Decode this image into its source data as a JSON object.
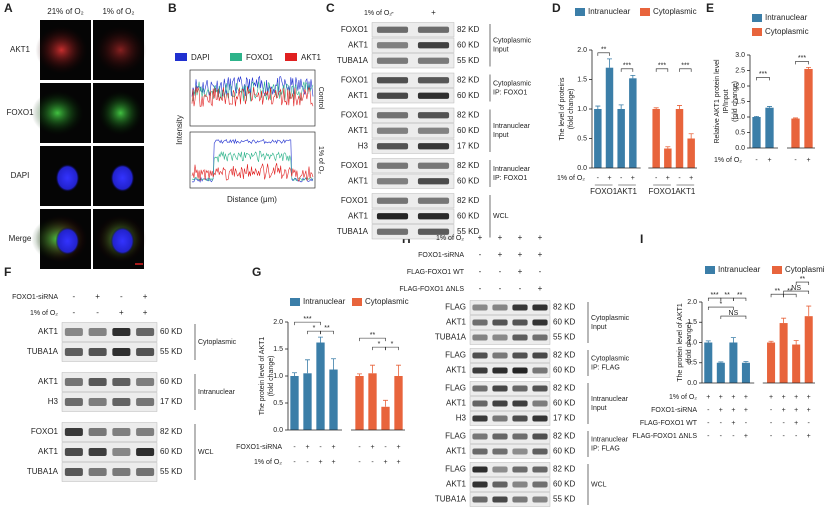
{
  "figure": {
    "A": {
      "letter": "A",
      "columns": [
        "21% of O₂",
        "1% of O₂"
      ],
      "rows": [
        "AKT1",
        "FOXO1",
        "DAPI",
        "Merge"
      ]
    },
    "B": {
      "letter": "B",
      "legend": [
        "DAPI",
        "FOXO1",
        "AKT1"
      ],
      "y_label": "Intensity",
      "x_label": "Distance (μm)",
      "conditions": [
        "Control",
        "1% of O₂"
      ]
    },
    "C": {
      "letter": "C",
      "conditions": [
        {
          "label": "1% of O₂",
          "signs": [
            "-",
            "+"
          ]
        }
      ],
      "sections": [
        {
          "label": [
            "Cytoplasmic",
            "Input"
          ],
          "bands": [
            {
              "protein": "FOXO1",
              "size": "82 KD"
            },
            {
              "protein": "AKT1",
              "size": "60 KD"
            },
            {
              "protein": "TUBA1A",
              "size": "55 KD"
            }
          ]
        },
        {
          "label": [
            "Cytoplasmic",
            "IP: FOXO1"
          ],
          "bands": [
            {
              "protein": "FOXO1",
              "size": "82 KD"
            },
            {
              "protein": "AKT1",
              "size": "60 KD"
            }
          ]
        },
        {
          "label": [
            "Intranuclear",
            "Input"
          ],
          "bands": [
            {
              "protein": "FOXO1",
              "size": "82 KD"
            },
            {
              "protein": "AKT1",
              "size": "60 KD"
            },
            {
              "protein": "H3",
              "size": "17 KD"
            }
          ]
        },
        {
          "label": [
            "Intranuclear",
            "IP: FOXO1"
          ],
          "bands": [
            {
              "protein": "FOXO1",
              "size": "82 KD"
            },
            {
              "protein": "AKT1",
              "size": "60 KD"
            }
          ]
        },
        {
          "label": [
            "WCL"
          ],
          "bands": [
            {
              "protein": "FOXO1",
              "size": "82 KD"
            },
            {
              "protein": "AKT1",
              "size": "60 KD"
            },
            {
              "protein": "TUBA1A",
              "size": "55 KD"
            }
          ]
        }
      ]
    },
    "F": {
      "letter": "F",
      "conditions": [
        {
          "label": "FOXO1-siRNA",
          "signs": [
            "-",
            "+",
            "-",
            "+"
          ]
        },
        {
          "label": "1% of O₂",
          "signs": [
            "-",
            "-",
            "+",
            "+"
          ]
        }
      ],
      "sections": [
        {
          "label": [
            "Cytoplasmic"
          ],
          "bands": [
            {
              "protein": "AKT1",
              "size": "60 KD"
            },
            {
              "protein": "TUBA1A",
              "size": "55 KD"
            }
          ]
        },
        {
          "label": [
            "Intranuclear"
          ],
          "bands": [
            {
              "protein": "AKT1",
              "size": "60 KD"
            },
            {
              "protein": "H3",
              "size": "17 KD"
            }
          ]
        },
        {
          "label": [
            "WCL"
          ],
          "bands": [
            {
              "protein": "FOXO1",
              "size": "82 KD"
            },
            {
              "protein": "AKT1",
              "size": "60 KD"
            },
            {
              "protein": "TUBA1A",
              "size": "55 KD"
            }
          ]
        }
      ]
    },
    "H": {
      "letter": "H",
      "conditions": [
        {
          "label": "1% of O₂",
          "signs": [
            "+",
            "+",
            "+",
            "+"
          ]
        },
        {
          "label": "FOXO1-siRNA",
          "signs": [
            "-",
            "+",
            "+",
            "+"
          ]
        },
        {
          "label": "FLAG-FOXO1 WT",
          "signs": [
            "-",
            "-",
            "+",
            "-"
          ]
        },
        {
          "label": "FLAG-FOXO1 ΔNLS",
          "signs": [
            "-",
            "-",
            "-",
            "+"
          ]
        }
      ],
      "sections": [
        {
          "label": [
            "Cytoplasmic",
            "Input"
          ],
          "bands": [
            {
              "protein": "FLAG",
              "size": "82 KD"
            },
            {
              "protein": "AKT1",
              "size": "60 KD"
            },
            {
              "protein": "TUBA1A",
              "size": "55 KD"
            }
          ]
        },
        {
          "label": [
            "Cytoplasmic",
            "IP: FLAG"
          ],
          "bands": [
            {
              "protein": "FLAG",
              "size": "82 KD"
            },
            {
              "protein": "AKT1",
              "size": "60 KD"
            }
          ]
        },
        {
          "label": [
            "Intranuclear",
            "Input"
          ],
          "bands": [
            {
              "protein": "FLAG",
              "size": "82 KD"
            },
            {
              "protein": "AKT1",
              "size": "60 KD"
            },
            {
              "protein": "H3",
              "size": "17 KD"
            }
          ]
        },
        {
          "label": [
            "Intranuclear",
            "IP: FLAG"
          ],
          "bands": [
            {
              "protein": "FLAG",
              "size": "82 KD"
            },
            {
              "protein": "AKT1",
              "size": "60 KD"
            }
          ]
        },
        {
          "label": [
            "WCL"
          ],
          "bands": [
            {
              "protein": "FLAG",
              "size": "82 KD"
            },
            {
              "protein": "AKT1",
              "size": "60 KD"
            },
            {
              "protein": "TUBA1A",
              "size": "55 KD"
            }
          ]
        }
      ]
    }
  },
  "chart_data": [
    {
      "type": "bar",
      "letter": "D",
      "y_label": [
        "The level of proteins",
        "(fold change)"
      ],
      "ylim": [
        0,
        2
      ],
      "yticks": [
        {
          "value": 0,
          "label": "0.0"
        },
        {
          "value": 0.5,
          "label": "0.5"
        },
        {
          "value": 1,
          "label": "1.0"
        },
        {
          "value": 1.5,
          "label": "1.5"
        },
        {
          "value": 2,
          "label": "2.0"
        }
      ],
      "series": [
        {
          "name": "Intranuclear",
          "color": "#3b7ea8",
          "values": [
            1.0,
            1.7,
            1.0,
            1.52
          ],
          "errors": [
            0.05,
            0.15,
            0.07,
            0.05
          ]
        },
        {
          "name": "Cytoplasmic",
          "color": "#e8643c",
          "values": [
            1.0,
            0.33,
            1.0,
            0.5
          ],
          "errors": [
            0.02,
            0.03,
            0.06,
            0.08
          ]
        }
      ],
      "conditions": [
        {
          "label": "1% of O₂",
          "signs": [
            "-",
            "+",
            "-",
            "+",
            "-",
            "+",
            "-",
            "+"
          ]
        }
      ],
      "groups": [
        "FOXO1",
        "AKT1",
        "FOXO1",
        "AKT1"
      ],
      "significance": [
        "**",
        "***",
        "***",
        "***"
      ]
    },
    {
      "type": "bar",
      "letter": "E",
      "y_label": [
        "Relative AKT1 protein level",
        "IP/Input",
        "(fold change)"
      ],
      "ylim": [
        0,
        3
      ],
      "yticks": [
        {
          "value": 0,
          "label": "0.0"
        },
        {
          "value": 0.5,
          "label": "0.5"
        },
        {
          "value": 1,
          "label": "1.0"
        },
        {
          "value": 1.5,
          "label": "1.5"
        },
        {
          "value": 2,
          "label": "2.0"
        },
        {
          "value": 2.5,
          "label": "2.5"
        },
        {
          "value": 3,
          "label": "3.0"
        }
      ],
      "series": [
        {
          "name": "Intranuclear",
          "color": "#3b7ea8",
          "values": [
            1.0,
            1.3
          ],
          "errors": [
            0.02,
            0.04
          ]
        },
        {
          "name": "Cytoplasmic",
          "color": "#e8643c",
          "values": [
            0.95,
            2.55
          ],
          "errors": [
            0.02,
            0.05
          ]
        }
      ],
      "conditions": [
        {
          "label": "1% of O₂",
          "signs": [
            "-",
            "+",
            "-",
            "+"
          ]
        }
      ],
      "significance": [
        "***",
        "***"
      ]
    },
    {
      "type": "bar",
      "letter": "G",
      "y_label": [
        "The protein level of AKT1",
        "(fold change)"
      ],
      "ylim": [
        0,
        2
      ],
      "yticks": [
        {
          "value": 0,
          "label": "0.0"
        },
        {
          "value": 0.5,
          "label": "0.5"
        },
        {
          "value": 1,
          "label": "1.0"
        },
        {
          "value": 1.5,
          "label": "1.5"
        },
        {
          "value": 2,
          "label": "2.0"
        }
      ],
      "series": [
        {
          "name": "Intranuclear",
          "color": "#3b7ea8",
          "values": [
            1.0,
            1.05,
            1.62,
            1.12
          ],
          "errors": [
            0.06,
            0.25,
            0.1,
            0.2
          ]
        },
        {
          "name": "Cytoplasmic",
          "color": "#e8643c",
          "values": [
            1.0,
            1.05,
            0.43,
            1.0
          ],
          "errors": [
            0.04,
            0.15,
            0.12,
            0.2
          ]
        }
      ],
      "conditions": [
        {
          "label": "FOXO1-siRNA",
          "signs": [
            "-",
            "+",
            "-",
            "+",
            "-",
            "+",
            "-",
            "+"
          ]
        },
        {
          "label": "1% of O₂",
          "signs": [
            "-",
            "-",
            "+",
            "+",
            "-",
            "-",
            "+",
            "+"
          ]
        }
      ],
      "significance": [
        "***",
        "*",
        "**",
        "**",
        "*",
        "*"
      ]
    },
    {
      "type": "bar",
      "letter": "I",
      "y_label": [
        "The protein level of AKT1",
        "(fold change)"
      ],
      "ylim": [
        0,
        2
      ],
      "yticks": [
        {
          "value": 0,
          "label": "0.0"
        },
        {
          "value": 0.5,
          "label": "0.5"
        },
        {
          "value": 1,
          "label": "1.0"
        },
        {
          "value": 1.5,
          "label": "1.5"
        },
        {
          "value": 2,
          "label": "2.0"
        }
      ],
      "series": [
        {
          "name": "Intranuclear",
          "color": "#3b7ea8",
          "values": [
            1.0,
            0.5,
            1.0,
            0.5
          ],
          "errors": [
            0.04,
            0.02,
            0.12,
            0.03
          ]
        },
        {
          "name": "Cytoplasmic",
          "color": "#e8643c",
          "values": [
            1.0,
            1.48,
            0.95,
            1.65
          ],
          "errors": [
            0.03,
            0.12,
            0.1,
            0.25
          ]
        }
      ],
      "conditions": [
        {
          "label": "1% of O₂",
          "signs": [
            "+",
            "+",
            "+",
            "+",
            "+",
            "+",
            "+",
            "+"
          ]
        },
        {
          "label": "FOXO1-siRNA",
          "signs": [
            "-",
            "+",
            "+",
            "+",
            "-",
            "+",
            "+",
            "+"
          ]
        },
        {
          "label": "FLAG-FOXO1 WT",
          "signs": [
            "-",
            "-",
            "+",
            "-",
            "-",
            "-",
            "+",
            "-"
          ]
        },
        {
          "label": "FLAG-FOXO1 ΔNLS",
          "signs": [
            "-",
            "-",
            "-",
            "+",
            "-",
            "-",
            "-",
            "+"
          ]
        }
      ],
      "significance": [
        "***",
        "**",
        "**",
        "*",
        "NS",
        "**",
        "**",
        "**",
        "NS"
      ]
    }
  ]
}
